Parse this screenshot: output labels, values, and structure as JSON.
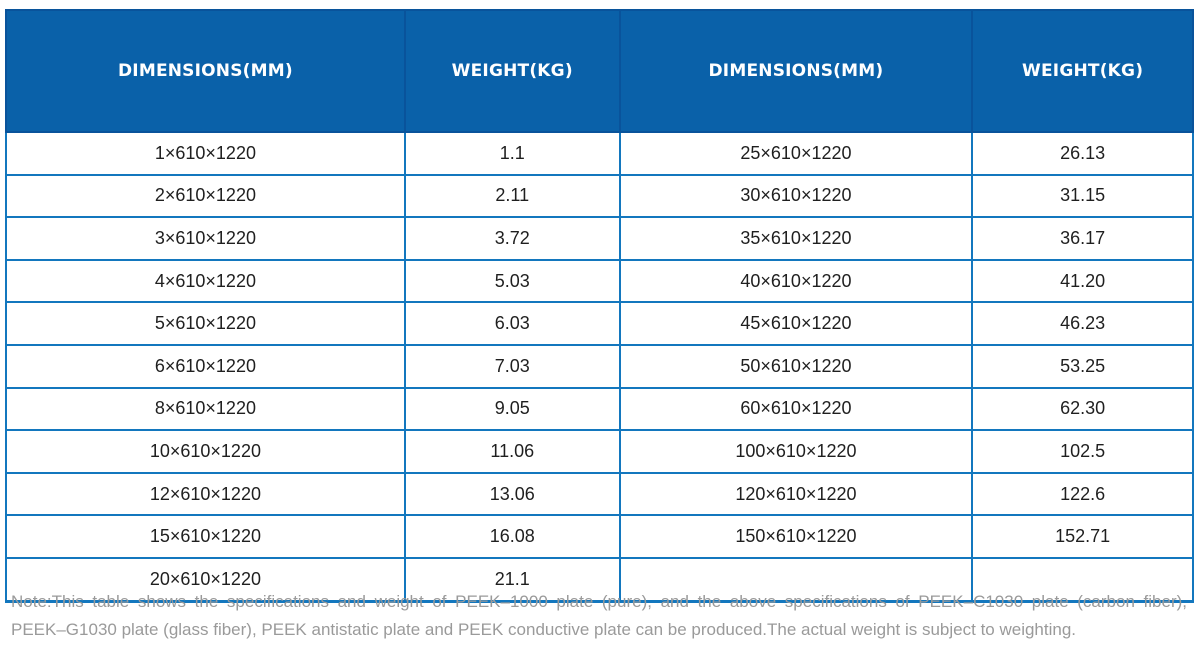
{
  "table": {
    "headers": [
      "DIMENSIONS(MM)",
      "WEIGHT(KG)",
      "DIMENSIONS(MM)",
      "WEIGHT(KG)"
    ],
    "rows": [
      [
        "1×610×1220",
        "1.1",
        "25×610×1220",
        "26.13"
      ],
      [
        "2×610×1220",
        "2.11",
        "30×610×1220",
        "31.15"
      ],
      [
        "3×610×1220",
        "3.72",
        "35×610×1220",
        "36.17"
      ],
      [
        "4×610×1220",
        "5.03",
        "40×610×1220",
        "41.20"
      ],
      [
        "5×610×1220",
        "6.03",
        "45×610×1220",
        "46.23"
      ],
      [
        "6×610×1220",
        "7.03",
        "50×610×1220",
        "53.25"
      ],
      [
        "8×610×1220",
        "9.05",
        "60×610×1220",
        "62.30"
      ],
      [
        "10×610×1220",
        "11.06",
        "100×610×1220",
        "102.5"
      ],
      [
        "12×610×1220",
        "13.06",
        "120×610×1220",
        "122.6"
      ],
      [
        "15×610×1220",
        "16.08",
        "150×610×1220",
        "152.71"
      ],
      [
        "20×610×1220",
        "21.1",
        "",
        ""
      ]
    ]
  },
  "note": {
    "lines": [
      "Note:This table shows the specifications and weight of PEEK–1000 plate (pure), and the above specifications of PEEK–C1030 plate (carbon fiber),",
      "PEEK–G1030 plate (glass fiber), PEEK antistatic plate and PEEK conductive plate can be produced.The actual weight is subject to weighting."
    ]
  },
  "colors": {
    "header_background": "#0A61A9",
    "header_border": "#09539B",
    "header_text": "#FFFFFF",
    "body_border": "#1377BE",
    "cell_text": "#1F1F1F",
    "note_text": "#9A9A9A"
  }
}
